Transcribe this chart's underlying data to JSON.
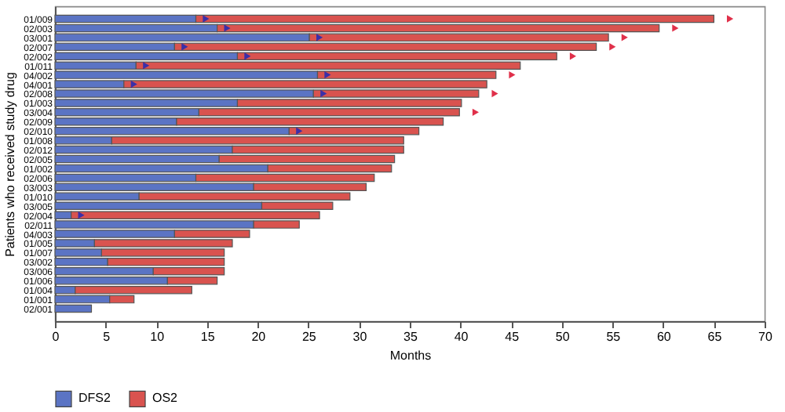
{
  "chart_data": {
    "type": "bar",
    "orientation": "horizontal",
    "xlabel": "Months",
    "ylabel": "Patients who received study drug",
    "categories": [
      "01/009",
      "02/003",
      "03/001",
      "02/007",
      "02/002",
      "01/011",
      "04/002",
      "04/001",
      "02/008",
      "01/003",
      "03/004",
      "02/009",
      "02/010",
      "01/008",
      "02/012",
      "02/005",
      "01/002",
      "02/006",
      "03/003",
      "01/010",
      "03/005",
      "02/004",
      "02/011",
      "04/003",
      "01/005",
      "01/007",
      "03/002",
      "03/006",
      "01/006",
      "01/004",
      "01/001",
      "02/001"
    ],
    "series": [
      {
        "name": "DFS2",
        "color": "#5b74c4",
        "values": [
          13.9,
          16.0,
          25.1,
          11.8,
          18.0,
          8.0,
          25.9,
          6.8,
          25.5,
          18.0,
          14.2,
          12.0,
          23.1,
          5.6,
          17.5,
          16.2,
          21.0,
          13.9,
          19.6,
          8.3,
          20.4,
          1.6,
          19.6,
          11.8,
          3.9,
          4.6,
          5.2,
          9.7,
          11.1,
          2.0,
          5.4,
          3.6
        ]
      },
      {
        "name": "OS2",
        "color": "#d9534f",
        "values": [
          51.1,
          43.6,
          29.5,
          41.6,
          31.5,
          37.9,
          17.6,
          35.8,
          16.3,
          22.1,
          25.7,
          26.3,
          12.8,
          28.8,
          16.9,
          17.3,
          12.2,
          17.6,
          11.1,
          20.8,
          7.0,
          24.5,
          4.5,
          7.4,
          13.6,
          12.1,
          11.5,
          7.0,
          4.9,
          11.5,
          2.4,
          null
        ]
      },
      {
        "type": "scatter",
        "marker": "triangle",
        "color": "#3a2fa8",
        "values": [
          14.9,
          17.0,
          26.1,
          12.8,
          19.0,
          9.0,
          26.9,
          7.8,
          26.5,
          null,
          null,
          null,
          24.1,
          null,
          null,
          null,
          null,
          null,
          null,
          null,
          null,
          2.6,
          null,
          null,
          null,
          null,
          null,
          null,
          null,
          null,
          null,
          null
        ]
      },
      {
        "type": "scatter",
        "marker": "triangle",
        "color": "#e0304a",
        "values": [
          66.6,
          61.2,
          56.2,
          55.0,
          51.1,
          null,
          45.1,
          null,
          43.4,
          null,
          41.5,
          null,
          null,
          null,
          null,
          null,
          null,
          null,
          null,
          null,
          null,
          null,
          null,
          null,
          null,
          null,
          null,
          null,
          null,
          null,
          null,
          null
        ]
      }
    ],
    "stacked": true,
    "xlim": [
      0,
      70
    ],
    "xticks": [
      0,
      5,
      10,
      15,
      20,
      25,
      30,
      35,
      40,
      45,
      50,
      55,
      60,
      65,
      70
    ],
    "grid": false,
    "legend": "bottom"
  }
}
